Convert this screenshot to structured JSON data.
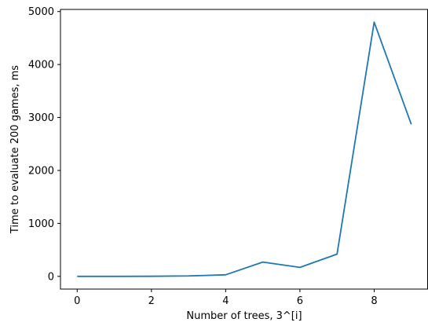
{
  "chart_data": {
    "type": "line",
    "title": "",
    "xlabel": "Number of trees, 3^[i]",
    "ylabel": "Time to evaluate 200 games, ms",
    "xlim": [
      -0.45,
      9.45
    ],
    "ylim": [
      -240,
      5040
    ],
    "xticks": [
      0,
      2,
      4,
      6,
      8
    ],
    "yticks": [
      0,
      1000,
      2000,
      3000,
      4000,
      5000
    ],
    "grid": false,
    "series": [
      {
        "color": "#1f77b4",
        "x": [
          0,
          1,
          2,
          3,
          4,
          5,
          6,
          7,
          8,
          9
        ],
        "y": [
          0,
          0,
          2,
          8,
          30,
          270,
          170,
          420,
          4800,
          2870
        ]
      }
    ]
  }
}
